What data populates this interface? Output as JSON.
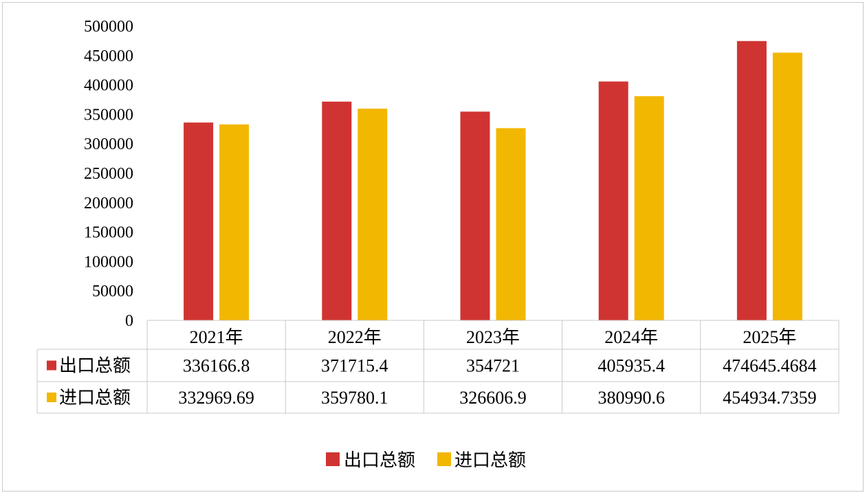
{
  "chart_data": {
    "type": "bar",
    "title": "",
    "xlabel": "",
    "ylabel": "",
    "ylim": [
      0,
      500000
    ],
    "yticks": [
      "0",
      "50000",
      "100000",
      "150000",
      "200000",
      "250000",
      "300000",
      "350000",
      "400000",
      "450000",
      "500000"
    ],
    "grid": false,
    "legend_position": "bottom",
    "categories": [
      "2021年",
      "2022年",
      "2023年",
      "2024年",
      "2025年"
    ],
    "series": [
      {
        "name": "出口总额",
        "color": "#d03432",
        "values": [
          336166.8,
          371715.4,
          354721,
          405935.4,
          474645.4684
        ],
        "labels": [
          "336166.8",
          "371715.4",
          "354721",
          "405935.4",
          "474645.4684"
        ]
      },
      {
        "name": "进口总额",
        "color": "#f2b700",
        "values": [
          332969.69,
          359780.1,
          326606.9,
          380990.6,
          454934.7359
        ],
        "labels": [
          "332969.69",
          "359780.1",
          "326606.9",
          "380990.6",
          "454934.7359"
        ]
      }
    ]
  }
}
